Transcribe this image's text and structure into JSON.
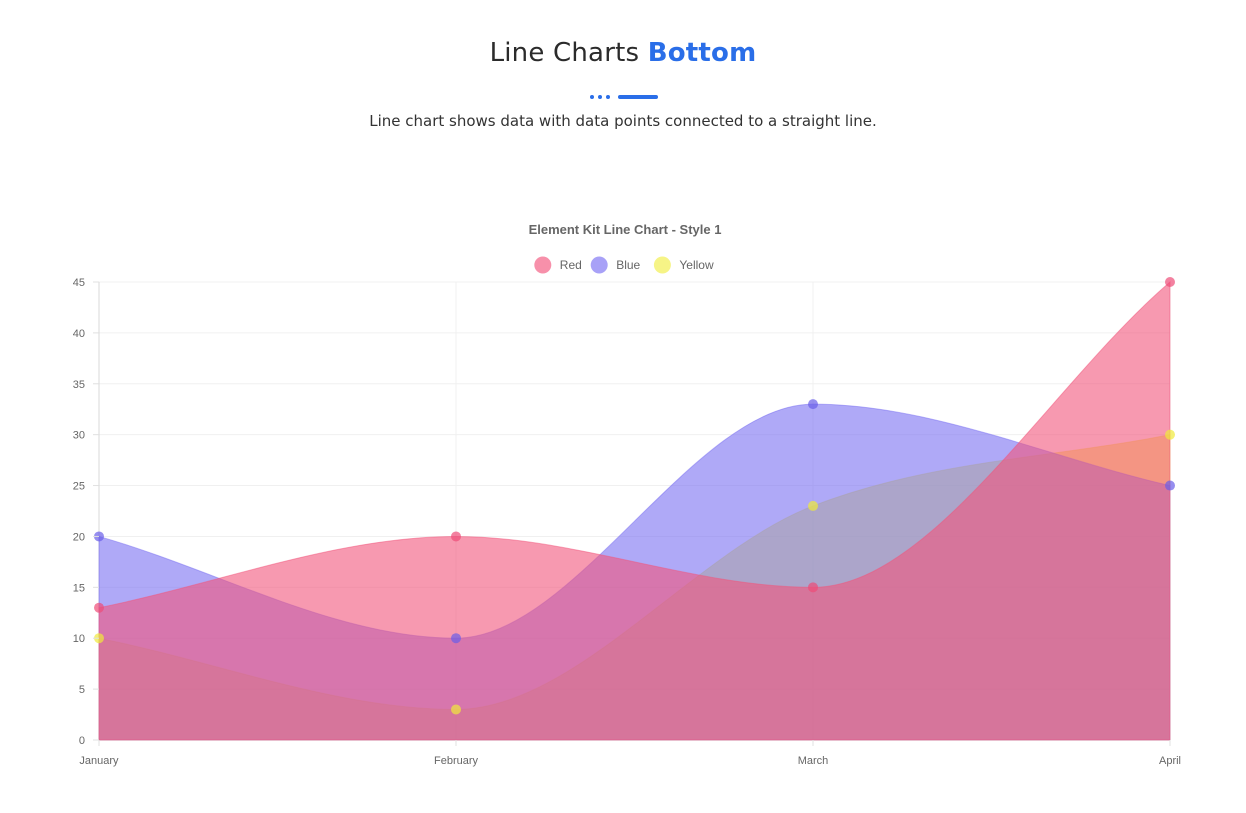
{
  "header": {
    "title_main": "Line Charts",
    "title_accent": "Bottom",
    "subtitle": "Line chart shows data with data points connected to a straight line."
  },
  "chart_data": {
    "type": "area",
    "title": "Element Kit Line Chart - Style 1",
    "categories": [
      "January",
      "February",
      "March",
      "April"
    ],
    "ylim": [
      0,
      45
    ],
    "yticks": [
      0,
      5,
      10,
      15,
      20,
      25,
      30,
      35,
      40,
      45
    ],
    "grid": true,
    "legend_position": "top",
    "series": [
      {
        "name": "Red",
        "values": [
          13,
          20,
          15,
          45
        ],
        "fill": "#f2557c",
        "point": "#ee4c78"
      },
      {
        "name": "Blue",
        "values": [
          20,
          10,
          33,
          25
        ],
        "fill": "#7a6ff2",
        "point": "#6a5ee8"
      },
      {
        "name": "Yellow",
        "values": [
          10,
          3,
          23,
          30
        ],
        "fill": "#f1ee45",
        "point": "#efe93a"
      }
    ]
  }
}
